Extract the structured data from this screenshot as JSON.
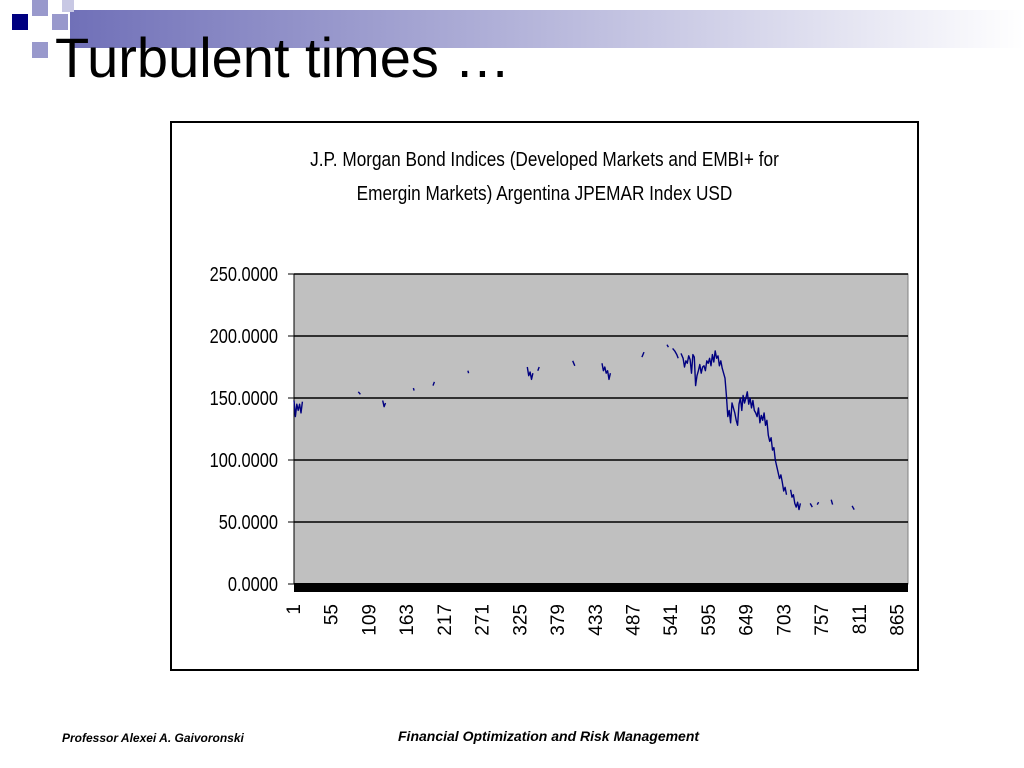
{
  "slide": {
    "title": "Turbulent times …",
    "footer_left": "Professor Alexei A. Gaivoronski",
    "footer_right": "Financial Optimization and Risk Management"
  },
  "colors": {
    "series": "#000080",
    "plot_bg": "#c0c0c0",
    "accent_dark": "#000080",
    "accent_light": "#9999cc"
  },
  "chart_data": {
    "type": "line",
    "title_lines": [
      "J.P. Morgan Bond Indices (Developed Markets and EMBI+ for",
      "Emergin Markets) Argentina JPEMAR Index USD"
    ],
    "xlabel": "",
    "ylabel": "",
    "ylim": [
      0,
      250
    ],
    "yticks": [
      "0.0000",
      "50.0000",
      "100.0000",
      "150.0000",
      "200.0000",
      "250.0000"
    ],
    "xlim": [
      1,
      880
    ],
    "xticks": [
      "1",
      "55",
      "109",
      "163",
      "217",
      "271",
      "325",
      "379",
      "433",
      "487",
      "541",
      "595",
      "649",
      "703",
      "757",
      "811",
      "865"
    ],
    "grid": true,
    "legend": "none",
    "segments": [
      [
        [
          1,
          148
        ],
        [
          3,
          135
        ],
        [
          5,
          145
        ],
        [
          7,
          140
        ],
        [
          9,
          145
        ],
        [
          11,
          138
        ],
        [
          13,
          147
        ]
      ],
      [
        [
          93,
          155
        ],
        [
          96,
          153
        ]
      ],
      [
        [
          128,
          148
        ],
        [
          130,
          143
        ],
        [
          132,
          146
        ]
      ],
      [
        [
          172,
          158
        ],
        [
          173,
          156
        ]
      ],
      [
        [
          200,
          160
        ],
        [
          202,
          163
        ]
      ],
      [
        [
          250,
          172
        ],
        [
          251,
          170
        ]
      ],
      [
        [
          335,
          175
        ],
        [
          337,
          168
        ],
        [
          339,
          171
        ],
        [
          341,
          165
        ],
        [
          343,
          170
        ]
      ],
      [
        [
          350,
          172
        ],
        [
          352,
          175
        ]
      ],
      [
        [
          400,
          180
        ],
        [
          403,
          176
        ]
      ],
      [
        [
          442,
          178
        ],
        [
          444,
          172
        ],
        [
          446,
          175
        ],
        [
          448,
          170
        ],
        [
          450,
          172
        ],
        [
          452,
          165
        ],
        [
          454,
          170
        ]
      ],
      [
        [
          499,
          183
        ],
        [
          502,
          187
        ]
      ],
      [
        [
          535,
          193
        ],
        [
          537,
          191
        ]
      ],
      [
        [
          543,
          190
        ],
        [
          546,
          188
        ],
        [
          549,
          185
        ],
        [
          551,
          182
        ]
      ],
      [
        [
          555,
          186
        ],
        [
          558,
          182
        ],
        [
          560,
          175
        ],
        [
          562,
          180
        ],
        [
          564,
          178
        ],
        [
          566,
          184
        ],
        [
          568,
          181
        ],
        [
          570,
          170
        ],
        [
          572,
          185
        ],
        [
          574,
          183
        ],
        [
          576,
          160
        ],
        [
          578,
          168
        ],
        [
          580,
          172
        ],
        [
          582,
          177
        ],
        [
          584,
          170
        ],
        [
          586,
          175
        ],
        [
          588,
          176
        ],
        [
          590,
          172
        ],
        [
          592,
          180
        ],
        [
          594,
          178
        ],
        [
          596,
          182
        ],
        [
          598,
          176
        ],
        [
          600,
          185
        ],
        [
          602,
          179
        ],
        [
          604,
          188
        ],
        [
          606,
          182
        ],
        [
          608,
          184
        ],
        [
          610,
          176
        ],
        [
          612,
          180
        ],
        [
          614,
          174
        ],
        [
          616,
          170
        ],
        [
          618,
          166
        ],
        [
          620,
          152
        ],
        [
          622,
          135
        ],
        [
          624,
          140
        ],
        [
          626,
          130
        ],
        [
          628,
          146
        ],
        [
          630,
          142
        ],
        [
          632,
          138
        ],
        [
          634,
          132
        ],
        [
          636,
          128
        ],
        [
          638,
          145
        ],
        [
          640,
          150
        ],
        [
          642,
          140
        ],
        [
          644,
          152
        ],
        [
          646,
          146
        ],
        [
          648,
          150
        ],
        [
          650,
          155
        ],
        [
          652,
          145
        ],
        [
          654,
          150
        ],
        [
          656,
          142
        ],
        [
          658,
          148
        ],
        [
          660,
          140
        ],
        [
          662,
          138
        ],
        [
          664,
          135
        ],
        [
          666,
          142
        ],
        [
          668,
          130
        ],
        [
          670,
          136
        ],
        [
          672,
          132
        ],
        [
          674,
          138
        ],
        [
          676,
          128
        ],
        [
          678,
          132
        ],
        [
          680,
          120
        ],
        [
          682,
          115
        ],
        [
          684,
          118
        ],
        [
          686,
          108
        ],
        [
          688,
          110
        ],
        [
          690,
          100
        ],
        [
          692,
          95
        ],
        [
          694,
          90
        ],
        [
          696,
          85
        ],
        [
          698,
          88
        ],
        [
          700,
          82
        ],
        [
          702,
          75
        ],
        [
          704,
          78
        ],
        [
          706,
          72
        ]
      ],
      [
        [
          712,
          76
        ],
        [
          714,
          70
        ],
        [
          716,
          72
        ],
        [
          718,
          65
        ],
        [
          720,
          62
        ],
        [
          722,
          66
        ],
        [
          724,
          60
        ],
        [
          726,
          65
        ]
      ],
      [
        [
          740,
          65
        ],
        [
          743,
          62
        ]
      ],
      [
        [
          750,
          64
        ],
        [
          752,
          66
        ]
      ],
      [
        [
          770,
          68
        ],
        [
          772,
          64
        ]
      ],
      [
        [
          800,
          63
        ],
        [
          803,
          60
        ]
      ]
    ]
  }
}
